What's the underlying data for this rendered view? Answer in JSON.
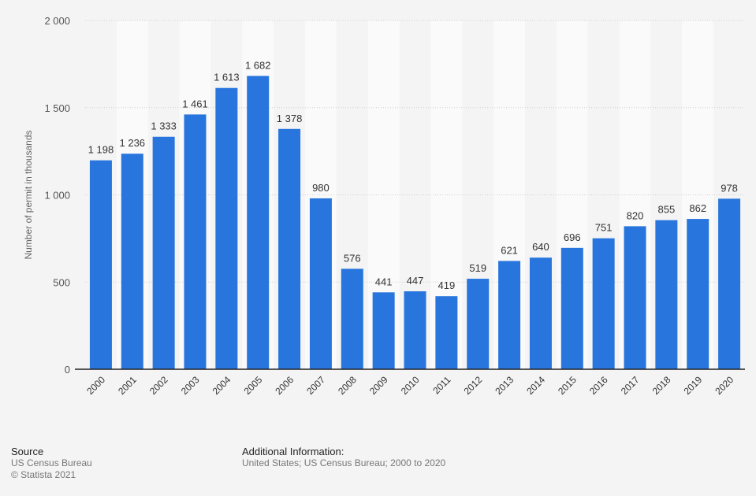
{
  "chart_data": {
    "type": "bar",
    "categories": [
      "2000",
      "2001",
      "2002",
      "2003",
      "2004",
      "2005",
      "2006",
      "2007",
      "2008",
      "2009",
      "2010",
      "2011",
      "2012",
      "2013",
      "2014",
      "2015",
      "2016",
      "2017",
      "2018",
      "2019",
      "2020"
    ],
    "values": [
      1198,
      1236,
      1333,
      1461,
      1613,
      1682,
      1378,
      980,
      576,
      441,
      447,
      419,
      519,
      621,
      640,
      696,
      751,
      820,
      855,
      862,
      978
    ],
    "value_labels": [
      "1 198",
      "1 236",
      "1 333",
      "1 461",
      "1 613",
      "1 682",
      "1 378",
      "980",
      "576",
      "441",
      "447",
      "419",
      "519",
      "621",
      "640",
      "696",
      "751",
      "820",
      "855",
      "862",
      "978"
    ],
    "ylabel": "Number of permit in thousands",
    "ylim": [
      0,
      2000
    ],
    "yticks": [
      0,
      500,
      1000,
      1500,
      2000
    ],
    "ytick_labels": [
      "0",
      "500",
      "1 000",
      "1 500",
      "2 000"
    ],
    "grid": true,
    "bar_color": "#2876dd"
  },
  "footer": {
    "source_heading": "Source",
    "source_text": "US Census Bureau",
    "copyright": "© Statista 2021",
    "info_heading": "Additional Information:",
    "info_text": "United States; US Census Bureau; 2000 to 2020"
  }
}
